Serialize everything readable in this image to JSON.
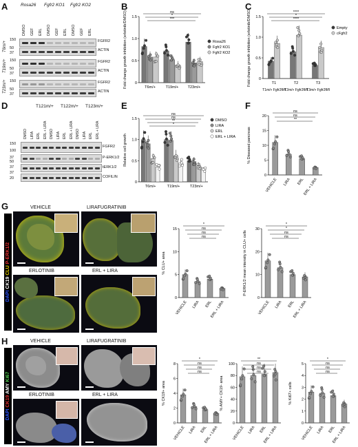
{
  "panel_letters": [
    "A",
    "B",
    "C",
    "D",
    "E",
    "F",
    "G",
    "H"
  ],
  "colors": {
    "dark_dot": "#3a3a3a",
    "mid_dot": "#8a8a8a",
    "light_dot": "#cfcfcf",
    "bar_dark": "#777777",
    "bar_mid": "#9a9a9a",
    "bar_light": "#c9c9c9",
    "channel_blue": "#2f57ff",
    "channel_yellow": "#e8d200",
    "channel_red": "#e23434",
    "channel_green": "#55d155"
  },
  "A": {
    "group_labels": [
      "Rosa26",
      "Fgfr2 KO1",
      "Fgfr2 KO2"
    ],
    "lane_labels": [
      "DMSO",
      "GEF",
      "ERL",
      "DMSO",
      "GEF",
      "ERL",
      "DMSO",
      "GEF",
      "ERL"
    ],
    "rows": [
      {
        "cell": "T6m/+",
        "mw": [
          "150",
          "50",
          "37"
        ],
        "bands": [
          "FGFR2",
          "ACTIN"
        ]
      },
      {
        "cell": "T19m/+",
        "mw": [
          "150",
          "50",
          "37"
        ],
        "bands": [
          "FGFR2",
          "ACTIN"
        ]
      },
      {
        "cell": "T23m/+",
        "mw": [
          "150",
          "50",
          "37"
        ],
        "bands": [
          "FGFR2",
          "ACTIN"
        ]
      }
    ]
  },
  "B": {
    "ylabel": "Fold change growth inhibition (erlotinib/DMSO)",
    "yticks": [
      "0",
      "0.5",
      "1.0",
      "1.5"
    ],
    "groups": [
      "T6m/+",
      "T19m/+",
      "T23m/+"
    ],
    "legend": [
      "Rosa26",
      "Fgfr2 KO1",
      "Fgfr2 KO2"
    ],
    "sig": [
      "ns",
      "*",
      "***",
      "*",
      "**",
      "****"
    ],
    "chart_data": {
      "type": "bar",
      "categories": [
        "T6m/+",
        "T19m/+",
        "T23m/+"
      ],
      "ylim": [
        0,
        1.5
      ],
      "series": [
        {
          "name": "Rosa26",
          "values": [
            0.82,
            0.72,
            0.92
          ]
        },
        {
          "name": "Fgfr2 KO1",
          "values": [
            0.58,
            0.52,
            0.45
          ]
        },
        {
          "name": "Fgfr2 KO2",
          "values": [
            0.58,
            0.4,
            0.48
          ]
        }
      ]
    }
  },
  "C": {
    "ylabel": "Fold change growth inhibition (erlotinib/DMSO)",
    "yticks": [
      "0",
      "0.5",
      "1.0",
      "1.5"
    ],
    "groups": [
      "T1m/+ Fgfr2fl/fl",
      "T2m/+ Fgfr2fl/fl",
      "T3m/+ Fgfr2fl/fl"
    ],
    "legend": [
      "Empty",
      "cFgfr2"
    ],
    "sig": [
      "****",
      "*",
      "****"
    ],
    "chart_data": {
      "type": "bar",
      "categories": [
        "T1",
        "T2",
        "T3"
      ],
      "ylim": [
        0,
        1.5
      ],
      "series": [
        {
          "name": "Empty",
          "values": [
            0.42,
            0.65,
            0.32
          ]
        },
        {
          "name": "cFgfr2",
          "values": [
            0.85,
            1.05,
            0.75
          ]
        }
      ]
    }
  },
  "D": {
    "group_labels": [
      "T121m/+",
      "T122m/+",
      "T123m/+"
    ],
    "lane_labels": [
      "DMSO",
      "LIRA",
      "ERL",
      "ERL + LIRA",
      "DMSO",
      "LIRA",
      "ERL",
      "ERL + LIRA",
      "DMSO",
      "LIRA",
      "ERL",
      "ERL + LIRA"
    ],
    "mw": [
      "150",
      "100",
      "37",
      "50",
      "37",
      "37",
      "20"
    ],
    "bands": [
      "FGFR2",
      "P-ERK1/2",
      "tERK1/2",
      "COFILIN"
    ]
  },
  "E": {
    "ylabel": "Relative cell growth",
    "yticks": [
      "0",
      "0.5",
      "1.0",
      "1.5"
    ],
    "groups": [
      "T6m/+",
      "T19m/+",
      "T23m/+"
    ],
    "legend": [
      "DMSO",
      "LIRA",
      "ERL",
      "ERL + LIRA"
    ],
    "sig": [
      "ns",
      "ns",
      "**",
      "*",
      "*",
      "***",
      "****",
      "**",
      "***",
      "****",
      "**"
    ],
    "chart_data": {
      "type": "bar",
      "categories": [
        "T6m/+",
        "T19m/+",
        "T23m/+"
      ],
      "ylim": [
        0,
        1.5
      ],
      "series": [
        {
          "name": "DMSO",
          "values": [
            1.0,
            1.0,
            0.5
          ]
        },
        {
          "name": "LIRA",
          "values": [
            0.9,
            0.98,
            0.48
          ]
        },
        {
          "name": "ERL",
          "values": [
            0.55,
            0.62,
            0.38
          ]
        },
        {
          "name": "ERL + LIRA",
          "values": [
            0.35,
            0.45,
            0.28
          ]
        }
      ]
    }
  },
  "F": {
    "ylabel": "% Diseased pancreas",
    "yticks": [
      "0",
      "5",
      "10",
      "15",
      "20"
    ],
    "categories": [
      "VEHICLE",
      "LIRA",
      "ERL",
      "ERL + LIRA"
    ],
    "sig": [
      "ns",
      "ns",
      "**"
    ],
    "chart_data": {
      "type": "bar",
      "categories": [
        "VEHICLE",
        "LIRA",
        "ERL",
        "ERL + LIRA"
      ],
      "values": [
        11,
        7,
        5.5,
        2.5
      ],
      "ylim": [
        0,
        20
      ]
    }
  },
  "G": {
    "images": [
      "VEHICLE",
      "LIRAFUGRATINIB",
      "ERLOTINIB",
      "ERL + LIRA"
    ],
    "stain": [
      "DAPI",
      "CK19",
      "CLU",
      "P-ERK1/2"
    ],
    "chart1": {
      "ylabel": "% CLU+ area",
      "yticks": [
        "0",
        "5",
        "10",
        "15"
      ],
      "categories": [
        "VEHICLE",
        "LIRA",
        "ERL",
        "ERL + LIRA"
      ],
      "sig": [
        "*",
        "ns",
        "ns",
        "ns",
        "ns",
        "ns"
      ],
      "chart_data": {
        "type": "bar",
        "categories": [
          "VEHICLE",
          "LIRA",
          "ERL",
          "ERL + LIRA"
        ],
        "values": [
          5,
          3.5,
          4,
          2
        ],
        "ylim": [
          0,
          15
        ]
      }
    },
    "chart2": {
      "ylabel": "P-ERK1/2 mean intensity in CLU+ cells",
      "yticks": [
        "0",
        "10",
        "20",
        "30"
      ],
      "categories": [
        "VEHICLE",
        "LIRA",
        "ERL",
        "ERL + LIRA"
      ],
      "sig": [
        "*",
        "*",
        "ns",
        "ns",
        "ns",
        "ns"
      ],
      "chart_data": {
        "type": "bar",
        "categories": [
          "VEHICLE",
          "LIRA",
          "ERL",
          "ERL + LIRA"
        ],
        "values": [
          16,
          13,
          10,
          9
        ],
        "ylim": [
          0,
          30
        ]
      }
    }
  },
  "H": {
    "images": [
      "VEHICLE",
      "LIRAFUGRATINIB",
      "ERLOTINIB",
      "ERL + LIRA"
    ],
    "stain": [
      "DAPI",
      "CK19",
      "AMY",
      "Ki67"
    ],
    "chart1": {
      "ylabel": "% CK19+ area",
      "yticks": [
        "0",
        "2",
        "4",
        "6",
        "8"
      ],
      "categories": [
        "VEHICLE",
        "LIRA",
        "ERL",
        "ERL + LIRA"
      ],
      "sig": [
        "*",
        "ns",
        "ns",
        "ns",
        "ns",
        "ns"
      ],
      "chart_data": {
        "type": "bar",
        "categories": [
          "VEHICLE",
          "LIRA",
          "ERL",
          "ERL + LIRA"
        ],
        "values": [
          3.8,
          2.2,
          1.8,
          1.3
        ],
        "ylim": [
          0,
          8
        ]
      }
    },
    "chart2": {
      "ylabel": "% AMY+ CK19- area",
      "yticks": [
        "0",
        "20",
        "40",
        "60",
        "80",
        "100"
      ],
      "categories": [
        "VEHICLE",
        "LIRA",
        "ERL",
        "ERL + LIRA"
      ],
      "sig": [
        "**",
        "ns",
        "ns",
        "ns",
        "ns",
        "ns"
      ],
      "chart_data": {
        "type": "bar",
        "categories": [
          "VEHICLE",
          "LIRA",
          "ERL",
          "ERL + LIRA"
        ],
        "values": [
          78,
          80,
          82,
          85
        ],
        "ylim": [
          0,
          100
        ]
      }
    },
    "chart3": {
      "ylabel": "% Ki67+ cells",
      "yticks": [
        "0",
        "1",
        "2",
        "3",
        "4",
        "5"
      ],
      "categories": [
        "VEHICLE",
        "LIRA",
        "ERL",
        "ERL + LIRA"
      ],
      "sig": [
        "*",
        "ns",
        "ns",
        "ns",
        "ns",
        "ns"
      ],
      "chart_data": {
        "type": "bar",
        "categories": [
          "VEHICLE",
          "LIRA",
          "ERL",
          "ERL + LIRA"
        ],
        "values": [
          2.6,
          2.5,
          2.3,
          1.6
        ],
        "ylim": [
          0,
          5
        ]
      }
    }
  }
}
